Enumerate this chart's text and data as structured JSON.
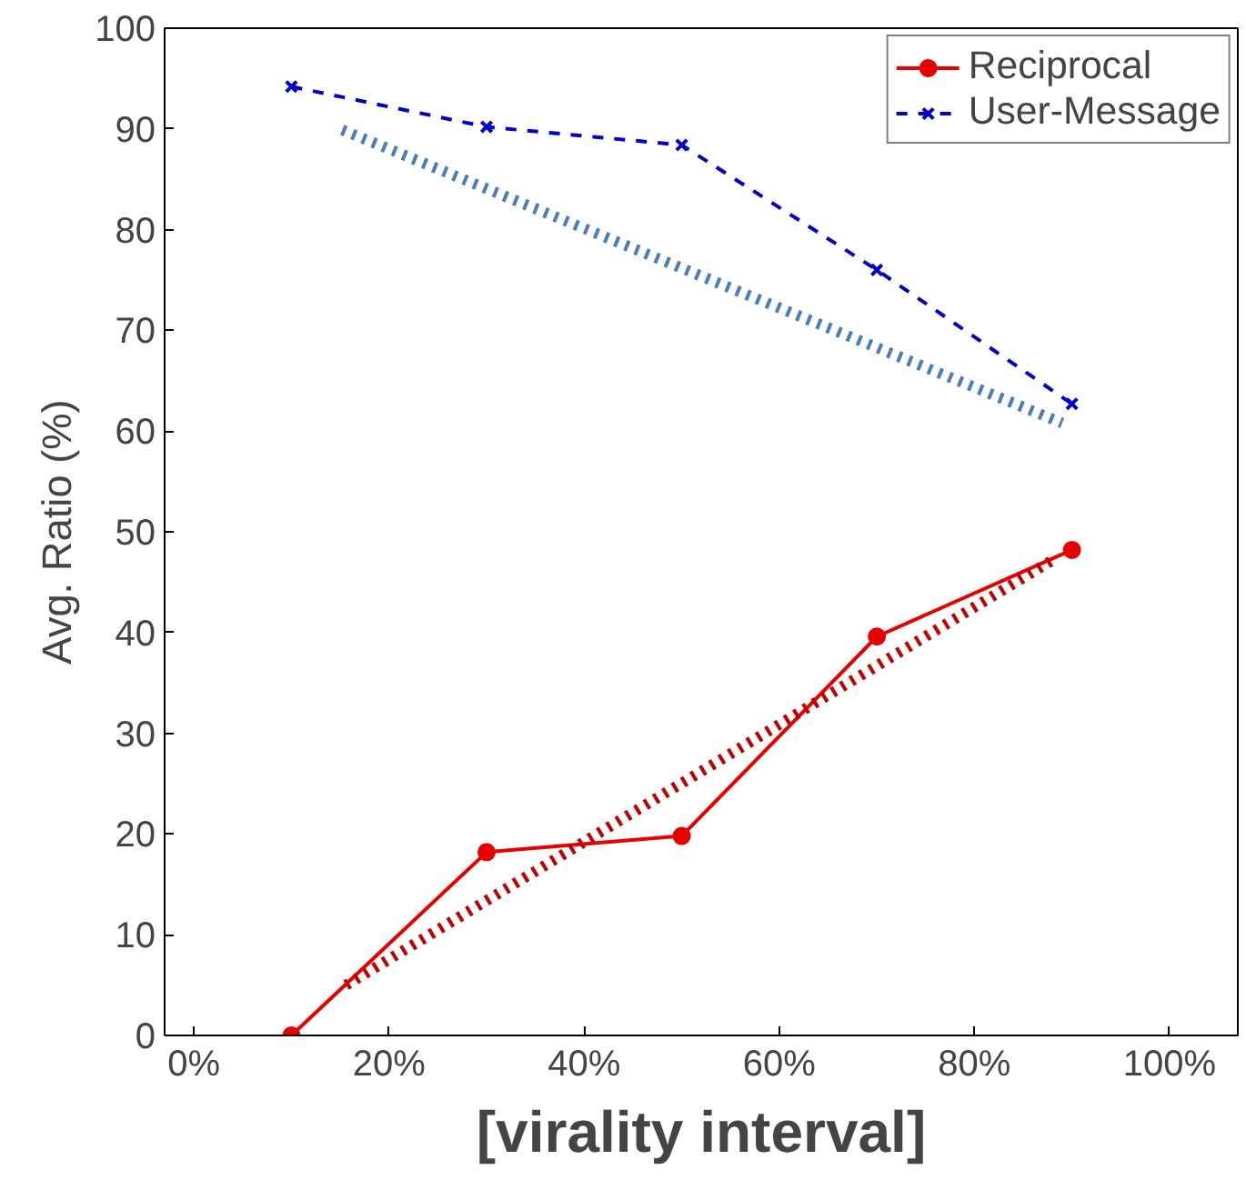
{
  "chart_data": {
    "type": "line",
    "xlabel": "[virality interval]",
    "ylabel": "Avg. Ratio (%)",
    "x": [
      10,
      30,
      50,
      70,
      90
    ],
    "xlim": [
      -3,
      107
    ],
    "xticks": [
      {
        "value": 0,
        "label": "0%"
      },
      {
        "value": 20,
        "label": "20%"
      },
      {
        "value": 40,
        "label": "40%"
      },
      {
        "value": 60,
        "label": "60%"
      },
      {
        "value": 80,
        "label": "80%"
      },
      {
        "value": 100,
        "label": "100%"
      }
    ],
    "ylim": [
      0,
      100
    ],
    "yticks": [
      0,
      10,
      20,
      30,
      40,
      50,
      60,
      70,
      80,
      90,
      100
    ],
    "grid": false,
    "legend": "top right",
    "series": [
      {
        "name": "Reciprocal",
        "color": "#e60000",
        "values": [
          0,
          18.2,
          19.8,
          39.6,
          48.2
        ],
        "marker": "circle",
        "line_style": "solid"
      },
      {
        "name": "User-Message",
        "color": "#0000c8",
        "values": [
          94.2,
          90.2,
          88.4,
          76,
          62.7
        ],
        "marker": "cross",
        "line_style": "dashed"
      },
      {
        "type": "line",
        "color": "#4a7ebb",
        "x": [
          15.2,
          89
        ],
        "values": [
          89.9,
          60.8
        ],
        "marker": "none",
        "line_style": "dotted"
      },
      {
        "type": "line",
        "color": "#c00000",
        "x": [
          15.6,
          88.2
        ],
        "values": [
          5.0,
          47.3
        ],
        "marker": "none",
        "line_style": "dotted"
      }
    ]
  }
}
